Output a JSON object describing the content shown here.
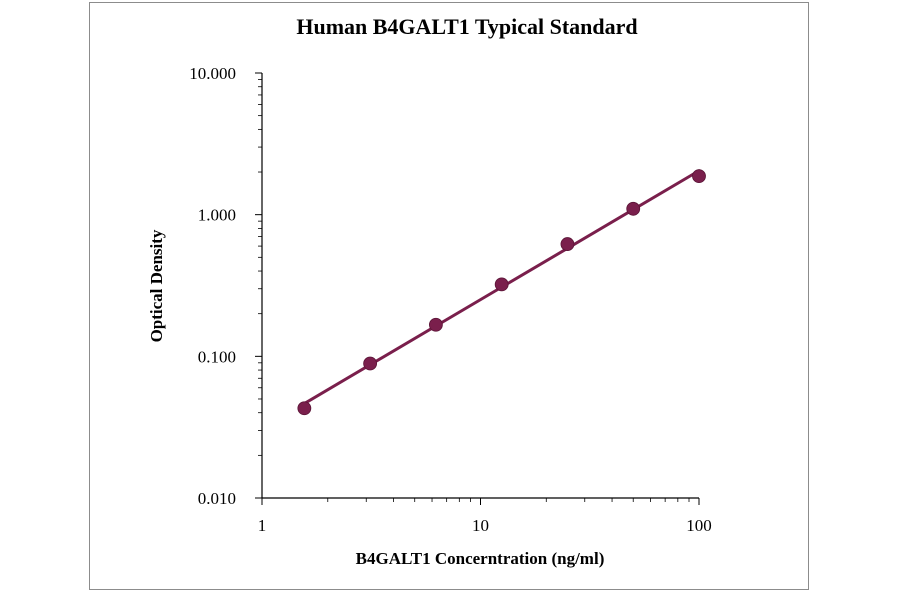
{
  "chart_data": {
    "type": "scatter",
    "title": "Human B4GALT1 Typical Standard",
    "xlabel": "B4GALT1 Concerntration (ng/ml)",
    "ylabel": "Optical Density",
    "x_scale": "log",
    "y_scale": "log",
    "xlim": [
      1,
      100
    ],
    "ylim": [
      0.01,
      10
    ],
    "x_ticks": [
      1,
      10,
      100
    ],
    "x_tick_labels": [
      "1",
      "10",
      "100"
    ],
    "y_ticks": [
      0.01,
      0.1,
      1,
      10
    ],
    "y_tick_labels": [
      "0.010",
      "0.100",
      "1.000",
      "10.000"
    ],
    "grid": false,
    "legend": "none",
    "series": [
      {
        "x": [
          1.5625,
          3.125,
          6.25,
          12.5,
          25,
          50,
          100
        ],
        "y": [
          0.043,
          0.089,
          0.167,
          0.322,
          0.62,
          1.1,
          1.87
        ],
        "fit_line": true
      }
    ],
    "colors": {
      "series": "#7a1f4c",
      "axis": "#000000",
      "frame": "#8c8c8c"
    }
  }
}
